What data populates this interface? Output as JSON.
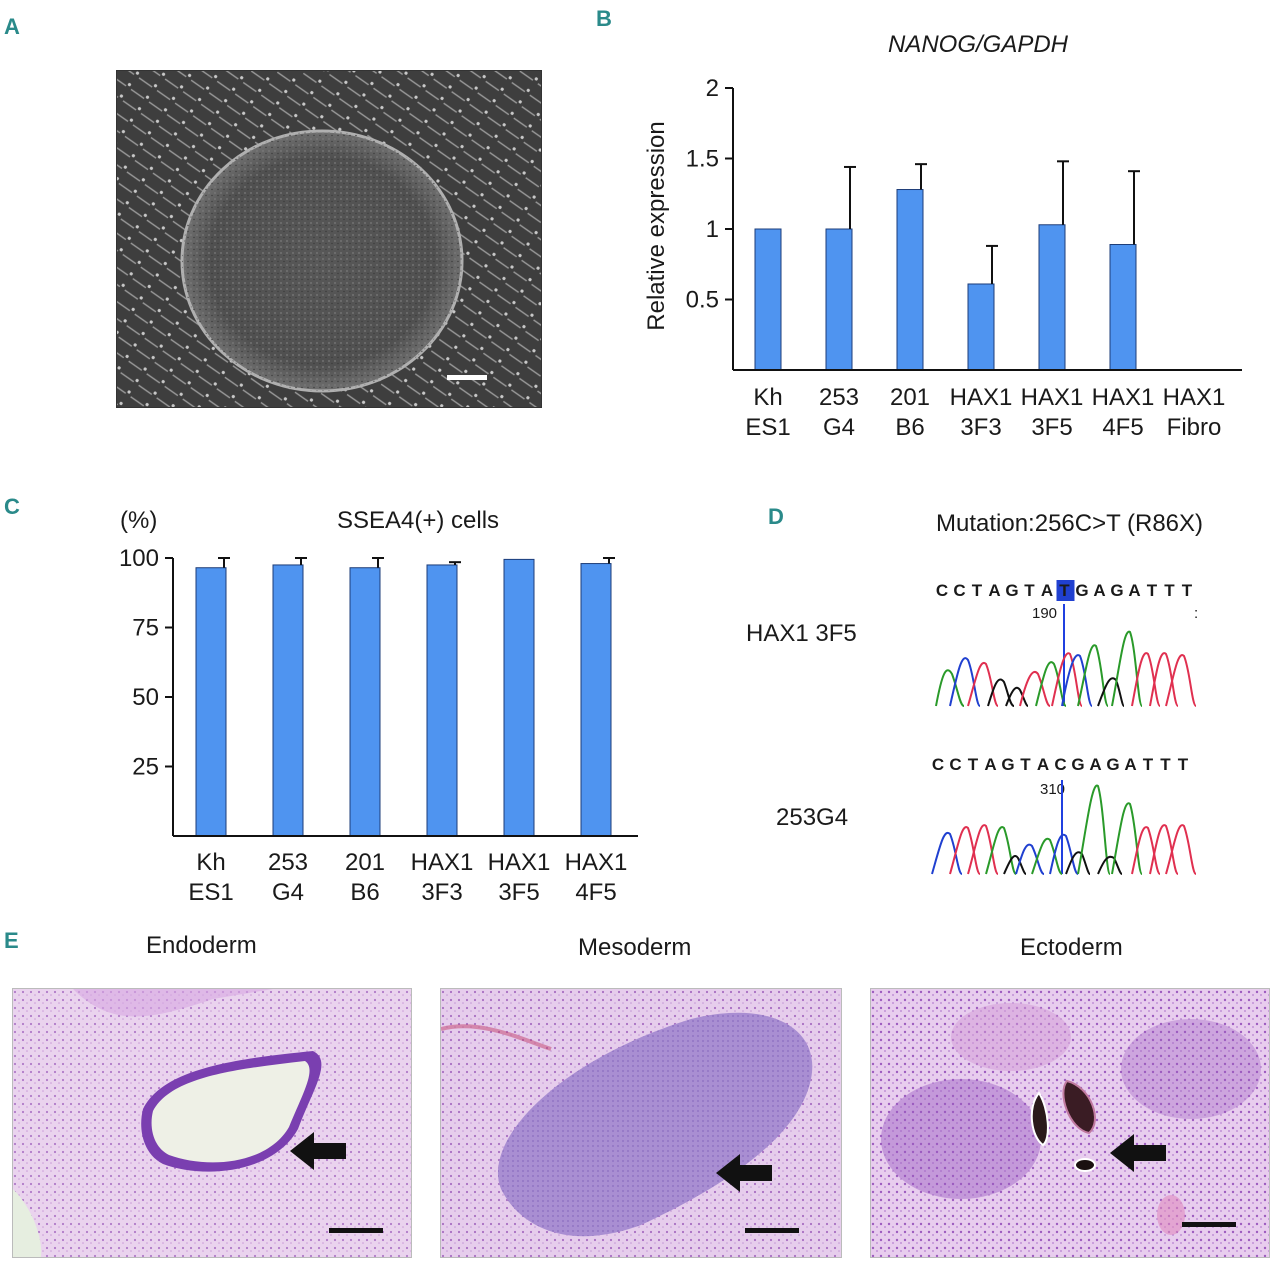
{
  "panels": {
    "A": {
      "letter": "A"
    },
    "B": {
      "letter": "B"
    },
    "C": {
      "letter": "C"
    },
    "D": {
      "letter": "D"
    },
    "E": {
      "letter": "E"
    }
  },
  "chart_data": [
    {
      "type": "bar",
      "panel": "B",
      "title": "NANOG/GAPDH",
      "ylabel": "Relative expression",
      "ylim": [
        0,
        2
      ],
      "yticks": [
        "0.5",
        "1",
        "1.5",
        "2"
      ],
      "categories": [
        [
          "Kh",
          "ES1"
        ],
        [
          "253",
          "G4"
        ],
        [
          "201",
          "B6"
        ],
        [
          "HAX1",
          "3F3"
        ],
        [
          "HAX1",
          "3F5"
        ],
        [
          "HAX1",
          "4F5"
        ],
        [
          "HAX1",
          "Fibro"
        ]
      ],
      "values": [
        1.0,
        1.0,
        1.28,
        0.61,
        1.03,
        0.89,
        0
      ],
      "errors": [
        0,
        0.44,
        0.18,
        0.27,
        0.45,
        0.52,
        0
      ],
      "color": "#4f94f0"
    },
    {
      "type": "bar",
      "panel": "C",
      "title": "SSEA4(+) cells",
      "ylabel": "(%)",
      "ylim": [
        0,
        100
      ],
      "yticks": [
        "25",
        "50",
        "75",
        "100"
      ],
      "categories": [
        [
          "Kh",
          "ES1"
        ],
        [
          "253",
          "G4"
        ],
        [
          "201",
          "B6"
        ],
        [
          "HAX1",
          "3F3"
        ],
        [
          "HAX1",
          "3F5"
        ],
        [
          "HAX1",
          "4F5"
        ]
      ],
      "values": [
        96.5,
        97.5,
        96.5,
        97.5,
        99.5,
        98.0
      ],
      "errors": [
        3.5,
        2.5,
        3.5,
        1.0,
        0,
        2.0
      ],
      "color": "#4f94f0"
    }
  ],
  "panelD": {
    "title": "Mutation:256C>T (R86X)",
    "sample1": {
      "label": "HAX1 3F5",
      "sequence": "CCTAGTATGAGATTT",
      "highlight_index": 7,
      "position": "190",
      "trailer": ":"
    },
    "sample2": {
      "label": "253G4",
      "sequence": "CCTAGTACGAGATTT",
      "position": "310"
    }
  },
  "panelE": {
    "labels": [
      "Endoderm",
      "Mesoderm",
      "Ectoderm"
    ]
  }
}
